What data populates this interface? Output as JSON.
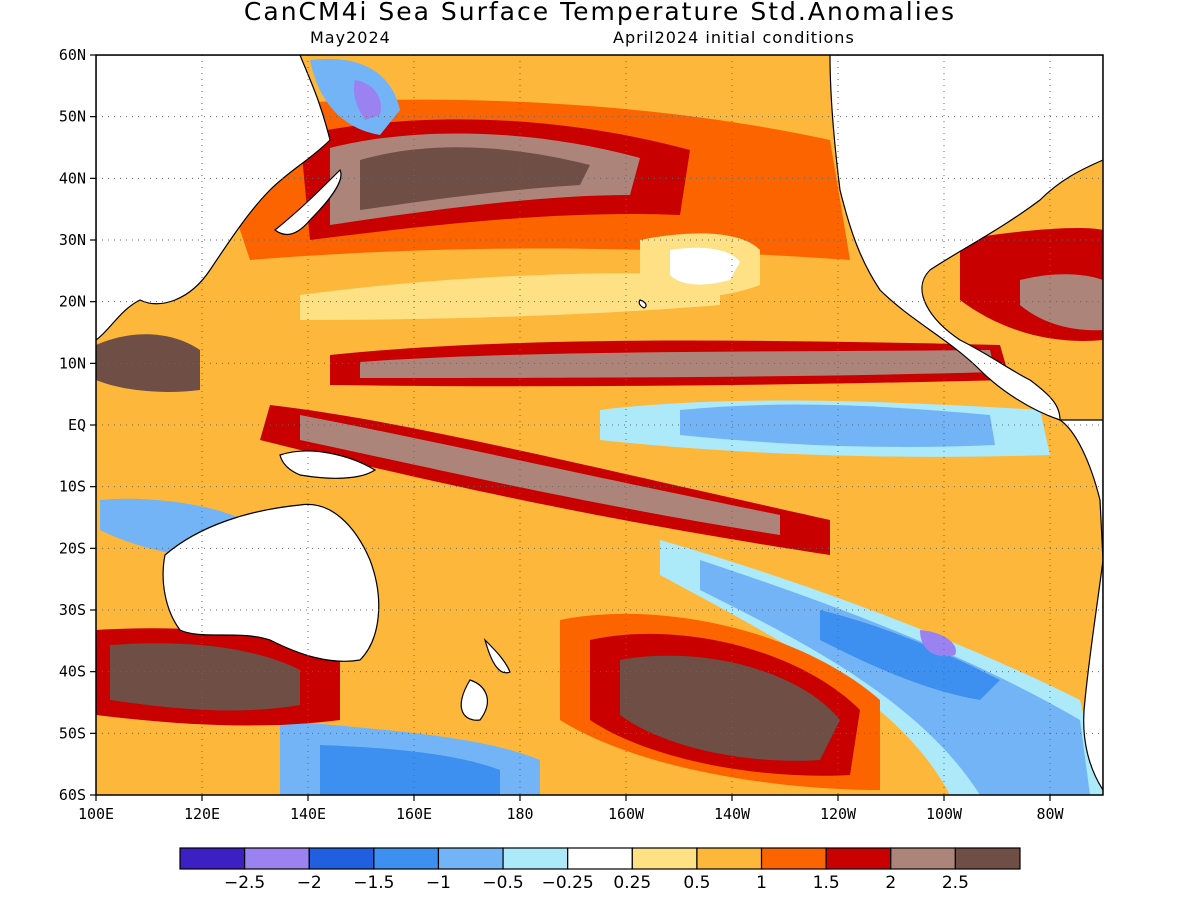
{
  "header": {
    "title": "CanCM4i Sea Surface Temperature Std.Anomalies",
    "forecast_month": "May2024",
    "initial_conditions": "April2024 initial conditions"
  },
  "map": {
    "lat_labels": [
      "60N",
      "50N",
      "40N",
      "30N",
      "20N",
      "10N",
      "EQ",
      "10S",
      "20S",
      "30S",
      "40S",
      "50S",
      "60S"
    ],
    "lat_values": [
      60,
      50,
      40,
      30,
      20,
      10,
      0,
      -10,
      -20,
      -30,
      -40,
      -50,
      -60
    ],
    "lon_labels": [
      "100E",
      "120E",
      "140E",
      "160E",
      "180",
      "160W",
      "140W",
      "120W",
      "100W",
      "80W"
    ],
    "lon_values": [
      100,
      120,
      140,
      160,
      180,
      200,
      220,
      240,
      260,
      280
    ],
    "lon_range": [
      100,
      290
    ],
    "lat_range": [
      -60,
      60
    ],
    "gridlines": true
  },
  "colorbar": {
    "colors": [
      "#3c20c4",
      "#9a82f0",
      "#1f5fe0",
      "#3d8ff0",
      "#73b4f6",
      "#ace9f9",
      "#ffffff",
      "#fee085",
      "#fdb73b",
      "#fc6400",
      "#c80000",
      "#ad8479",
      "#6e4e45"
    ],
    "tick_labels": [
      "−2.5",
      "−2",
      "−1.5",
      "−1",
      "−0.5",
      "−0.25",
      "0.25",
      "0.5",
      "1",
      "1.5",
      "2",
      "2.5"
    ]
  }
}
